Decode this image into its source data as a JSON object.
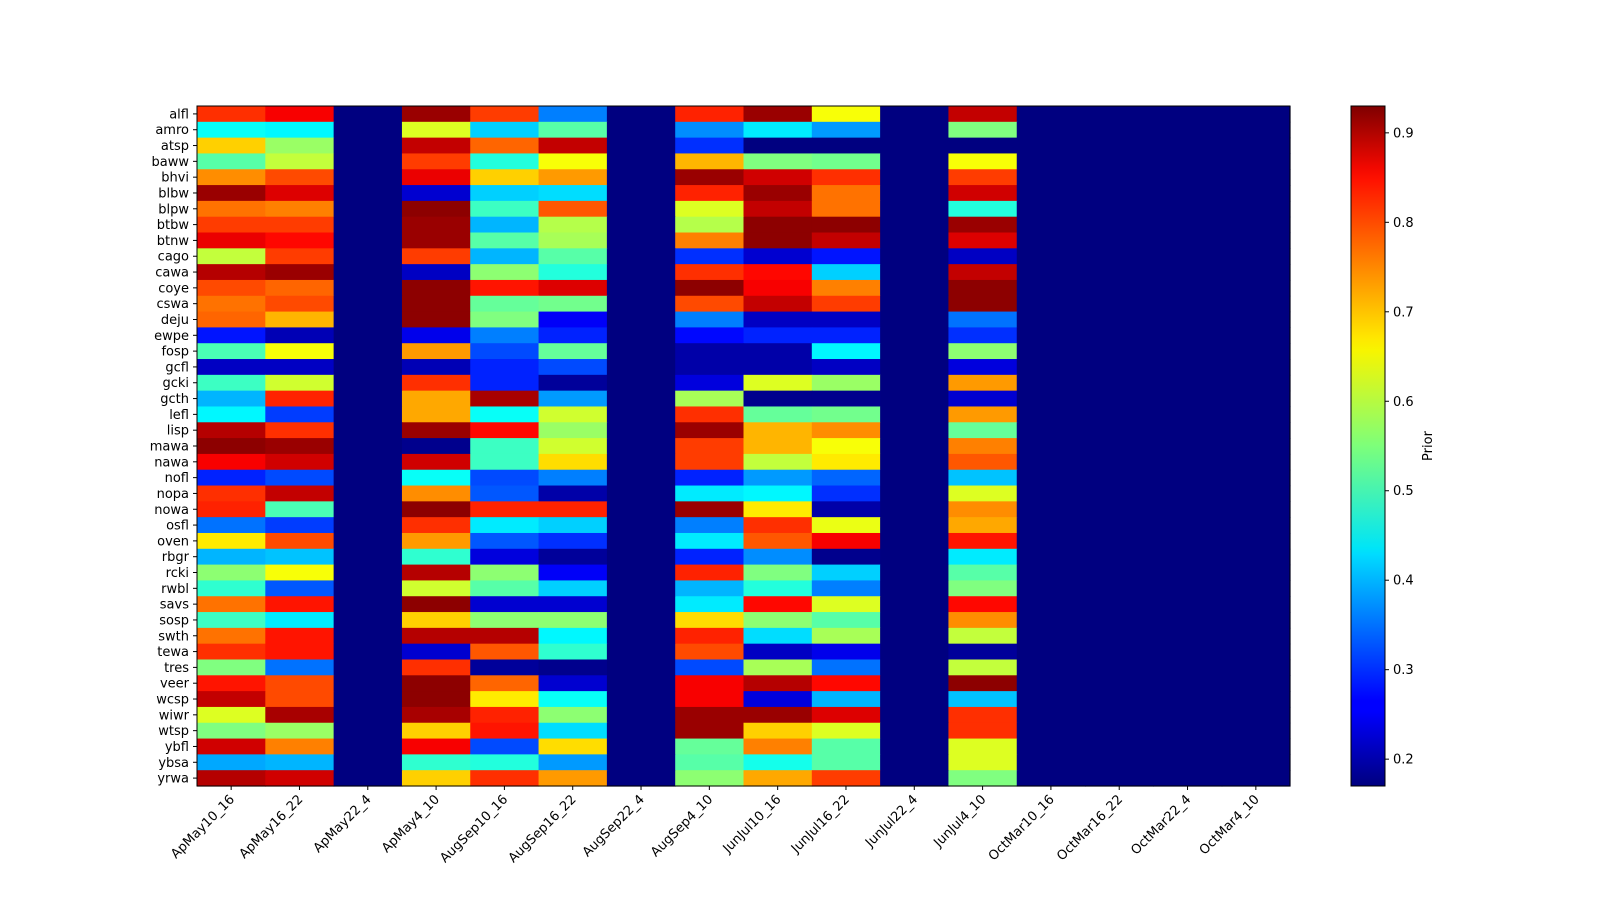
{
  "chart_data": {
    "type": "heatmap",
    "title": "",
    "xlabel": "",
    "ylabel": "",
    "colormap": "jet",
    "colorbar": {
      "label": "Prior",
      "vmin": 0.17,
      "vmax": 0.93,
      "ticks": [
        0.2,
        0.3,
        0.4,
        0.5,
        0.6,
        0.7,
        0.8,
        0.9
      ],
      "tick_labels": [
        "0.2",
        "0.3",
        "0.4",
        "0.5",
        "0.6",
        "0.7",
        "0.8",
        "0.9"
      ]
    },
    "columns": [
      "ApMay10_16",
      "ApMay16_22",
      "ApMay22_4",
      "ApMay4_10",
      "AugSep10_16",
      "AugSep16_22",
      "AugSep22_4",
      "AugSep4_10",
      "JunJul10_16",
      "JunJul16_22",
      "JunJul22_4",
      "JunJul4_10",
      "OctMar10_16",
      "OctMar16_22",
      "OctMar22_4",
      "OctMar4_10"
    ],
    "rows": [
      "alfl",
      "amro",
      "atsp",
      "baww",
      "bhvi",
      "blbw",
      "blpw",
      "btbw",
      "btnw",
      "cago",
      "cawa",
      "coye",
      "cswa",
      "deju",
      "ewpe",
      "fosp",
      "gcfl",
      "gcki",
      "gcth",
      "lefl",
      "lisp",
      "mawa",
      "nawa",
      "nofl",
      "nopa",
      "nowa",
      "osfl",
      "oven",
      "rbgr",
      "rcki",
      "rwbl",
      "savs",
      "sosp",
      "swth",
      "tewa",
      "tres",
      "veer",
      "wcsp",
      "wiwr",
      "wtsp",
      "ybfl",
      "ybsa",
      "yrwa"
    ],
    "values": [
      [
        0.8,
        0.84,
        0.17,
        0.91,
        0.79,
        0.36,
        0.17,
        0.81,
        0.91,
        0.64,
        0.17,
        0.88,
        0.17,
        0.17,
        0.17,
        0.17
      ],
      [
        0.46,
        0.45,
        0.17,
        0.62,
        0.42,
        0.52,
        0.17,
        0.37,
        0.44,
        0.38,
        0.17,
        0.55,
        0.17,
        0.17,
        0.17,
        0.17
      ],
      [
        0.68,
        0.57,
        0.17,
        0.88,
        0.76,
        0.88,
        0.17,
        0.3,
        0.17,
        0.17,
        0.17,
        0.17,
        0.17,
        0.17,
        0.17,
        0.17
      ],
      [
        0.52,
        0.6,
        0.17,
        0.79,
        0.48,
        0.64,
        0.17,
        0.7,
        0.55,
        0.54,
        0.17,
        0.64,
        0.17,
        0.17,
        0.17,
        0.17
      ],
      [
        0.73,
        0.78,
        0.17,
        0.85,
        0.68,
        0.72,
        0.17,
        0.91,
        0.87,
        0.8,
        0.17,
        0.79,
        0.17,
        0.17,
        0.17,
        0.17
      ],
      [
        0.91,
        0.86,
        0.17,
        0.23,
        0.42,
        0.43,
        0.17,
        0.81,
        0.91,
        0.75,
        0.17,
        0.87,
        0.17,
        0.17,
        0.17,
        0.17
      ],
      [
        0.75,
        0.74,
        0.17,
        0.92,
        0.5,
        0.77,
        0.17,
        0.62,
        0.88,
        0.75,
        0.17,
        0.48,
        0.17,
        0.17,
        0.17,
        0.17
      ],
      [
        0.79,
        0.79,
        0.17,
        0.91,
        0.4,
        0.59,
        0.17,
        0.59,
        0.92,
        0.92,
        0.17,
        0.91,
        0.17,
        0.17,
        0.17,
        0.17
      ],
      [
        0.85,
        0.83,
        0.17,
        0.91,
        0.52,
        0.58,
        0.17,
        0.74,
        0.92,
        0.88,
        0.17,
        0.86,
        0.17,
        0.17,
        0.17,
        0.17
      ],
      [
        0.6,
        0.79,
        0.17,
        0.79,
        0.4,
        0.52,
        0.17,
        0.3,
        0.23,
        0.28,
        0.17,
        0.22,
        0.17,
        0.17,
        0.17,
        0.17
      ],
      [
        0.89,
        0.91,
        0.17,
        0.22,
        0.56,
        0.48,
        0.17,
        0.8,
        0.83,
        0.42,
        0.17,
        0.88,
        0.17,
        0.17,
        0.17,
        0.17
      ],
      [
        0.78,
        0.76,
        0.17,
        0.92,
        0.82,
        0.86,
        0.17,
        0.92,
        0.84,
        0.74,
        0.17,
        0.92,
        0.17,
        0.17,
        0.17,
        0.17
      ],
      [
        0.75,
        0.78,
        0.17,
        0.92,
        0.53,
        0.54,
        0.17,
        0.78,
        0.88,
        0.79,
        0.17,
        0.92,
        0.17,
        0.17,
        0.17,
        0.17
      ],
      [
        0.76,
        0.7,
        0.17,
        0.92,
        0.55,
        0.26,
        0.17,
        0.36,
        0.22,
        0.22,
        0.17,
        0.35,
        0.17,
        0.17,
        0.17,
        0.17
      ],
      [
        0.28,
        0.21,
        0.17,
        0.25,
        0.36,
        0.29,
        0.17,
        0.27,
        0.29,
        0.29,
        0.17,
        0.3,
        0.17,
        0.17,
        0.17,
        0.17
      ],
      [
        0.51,
        0.64,
        0.17,
        0.72,
        0.32,
        0.53,
        0.17,
        0.2,
        0.2,
        0.45,
        0.17,
        0.56,
        0.17,
        0.17,
        0.17,
        0.17
      ],
      [
        0.22,
        0.22,
        0.17,
        0.21,
        0.29,
        0.32,
        0.17,
        0.2,
        0.2,
        0.22,
        0.17,
        0.24,
        0.17,
        0.17,
        0.17,
        0.17
      ],
      [
        0.5,
        0.61,
        0.17,
        0.8,
        0.29,
        0.19,
        0.17,
        0.24,
        0.62,
        0.57,
        0.17,
        0.72,
        0.17,
        0.17,
        0.17,
        0.17
      ],
      [
        0.4,
        0.81,
        0.17,
        0.71,
        0.9,
        0.38,
        0.17,
        0.58,
        0.18,
        0.18,
        0.17,
        0.23,
        0.17,
        0.17,
        0.17,
        0.17
      ],
      [
        0.45,
        0.31,
        0.17,
        0.71,
        0.46,
        0.61,
        0.17,
        0.8,
        0.53,
        0.54,
        0.17,
        0.72,
        0.17,
        0.17,
        0.17,
        0.17
      ],
      [
        0.89,
        0.8,
        0.17,
        0.91,
        0.83,
        0.57,
        0.17,
        0.91,
        0.7,
        0.73,
        0.17,
        0.53,
        0.17,
        0.17,
        0.17,
        0.17
      ],
      [
        0.92,
        0.91,
        0.17,
        0.18,
        0.5,
        0.61,
        0.17,
        0.79,
        0.7,
        0.64,
        0.17,
        0.74,
        0.17,
        0.17,
        0.17,
        0.17
      ],
      [
        0.84,
        0.87,
        0.17,
        0.87,
        0.5,
        0.67,
        0.17,
        0.79,
        0.6,
        0.66,
        0.17,
        0.77,
        0.17,
        0.17,
        0.17,
        0.17
      ],
      [
        0.29,
        0.32,
        0.17,
        0.46,
        0.32,
        0.36,
        0.17,
        0.29,
        0.38,
        0.34,
        0.17,
        0.41,
        0.17,
        0.17,
        0.17,
        0.17
      ],
      [
        0.8,
        0.88,
        0.17,
        0.73,
        0.33,
        0.2,
        0.17,
        0.44,
        0.45,
        0.3,
        0.17,
        0.62,
        0.17,
        0.17,
        0.17,
        0.17
      ],
      [
        0.81,
        0.51,
        0.17,
        0.92,
        0.81,
        0.81,
        0.17,
        0.91,
        0.66,
        0.2,
        0.17,
        0.73,
        0.17,
        0.17,
        0.17,
        0.17
      ],
      [
        0.35,
        0.31,
        0.17,
        0.8,
        0.44,
        0.42,
        0.17,
        0.36,
        0.8,
        0.63,
        0.17,
        0.71,
        0.17,
        0.17,
        0.17,
        0.17
      ],
      [
        0.66,
        0.78,
        0.17,
        0.72,
        0.33,
        0.3,
        0.17,
        0.44,
        0.77,
        0.84,
        0.17,
        0.82,
        0.17,
        0.17,
        0.17,
        0.17
      ],
      [
        0.4,
        0.41,
        0.17,
        0.49,
        0.24,
        0.19,
        0.17,
        0.29,
        0.37,
        0.18,
        0.17,
        0.44,
        0.17,
        0.17,
        0.17,
        0.17
      ],
      [
        0.56,
        0.64,
        0.17,
        0.89,
        0.56,
        0.26,
        0.17,
        0.81,
        0.55,
        0.42,
        0.17,
        0.52,
        0.17,
        0.17,
        0.17,
        0.17
      ],
      [
        0.49,
        0.33,
        0.17,
        0.61,
        0.52,
        0.42,
        0.17,
        0.4,
        0.48,
        0.36,
        0.17,
        0.55,
        0.17,
        0.17,
        0.17,
        0.17
      ],
      [
        0.75,
        0.82,
        0.17,
        0.92,
        0.23,
        0.23,
        0.17,
        0.44,
        0.83,
        0.62,
        0.17,
        0.83,
        0.17,
        0.17,
        0.17,
        0.17
      ],
      [
        0.5,
        0.44,
        0.17,
        0.68,
        0.56,
        0.56,
        0.17,
        0.67,
        0.56,
        0.52,
        0.17,
        0.73,
        0.17,
        0.17,
        0.17,
        0.17
      ],
      [
        0.75,
        0.82,
        0.17,
        0.89,
        0.89,
        0.45,
        0.17,
        0.81,
        0.43,
        0.58,
        0.17,
        0.6,
        0.17,
        0.17,
        0.17,
        0.17
      ],
      [
        0.8,
        0.82,
        0.17,
        0.23,
        0.77,
        0.49,
        0.17,
        0.78,
        0.22,
        0.25,
        0.17,
        0.19,
        0.17,
        0.17,
        0.17,
        0.17
      ],
      [
        0.55,
        0.35,
        0.17,
        0.8,
        0.19,
        0.18,
        0.17,
        0.32,
        0.58,
        0.35,
        0.17,
        0.6,
        0.17,
        0.17,
        0.17,
        0.17
      ],
      [
        0.82,
        0.78,
        0.17,
        0.92,
        0.76,
        0.23,
        0.17,
        0.84,
        0.89,
        0.83,
        0.17,
        0.92,
        0.17,
        0.17,
        0.17,
        0.17
      ],
      [
        0.88,
        0.78,
        0.17,
        0.92,
        0.66,
        0.46,
        0.17,
        0.84,
        0.24,
        0.4,
        0.17,
        0.41,
        0.17,
        0.17,
        0.17,
        0.17
      ],
      [
        0.62,
        0.9,
        0.17,
        0.9,
        0.81,
        0.56,
        0.17,
        0.91,
        0.91,
        0.86,
        0.17,
        0.8,
        0.17,
        0.17,
        0.17,
        0.17
      ],
      [
        0.55,
        0.57,
        0.17,
        0.68,
        0.82,
        0.43,
        0.17,
        0.91,
        0.68,
        0.62,
        0.17,
        0.8,
        0.17,
        0.17,
        0.17,
        0.17
      ],
      [
        0.87,
        0.74,
        0.17,
        0.84,
        0.32,
        0.67,
        0.17,
        0.53,
        0.74,
        0.52,
        0.17,
        0.62,
        0.17,
        0.17,
        0.17,
        0.17
      ],
      [
        0.39,
        0.4,
        0.17,
        0.49,
        0.48,
        0.38,
        0.17,
        0.52,
        0.47,
        0.52,
        0.17,
        0.62,
        0.17,
        0.17,
        0.17,
        0.17
      ],
      [
        0.89,
        0.87,
        0.17,
        0.68,
        0.8,
        0.72,
        0.17,
        0.56,
        0.71,
        0.79,
        0.17,
        0.55,
        0.17,
        0.17,
        0.17,
        0.17
      ]
    ]
  }
}
